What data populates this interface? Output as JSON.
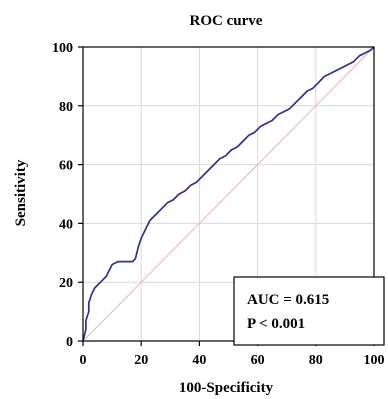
{
  "chart_data": {
    "type": "line",
    "title": "ROC curve",
    "xlabel": "100-Specificity",
    "ylabel": "Sensitivity",
    "xlim": [
      0,
      100
    ],
    "ylim": [
      0,
      100
    ],
    "xticks": [
      0,
      20,
      40,
      60,
      80,
      100
    ],
    "yticks": [
      0,
      20,
      40,
      60,
      80,
      100
    ],
    "grid": true,
    "colors": {
      "curve": "#2e3192",
      "diagonal": "#e8b4b8",
      "grid": "#d9d9d9",
      "frame": "#000000"
    },
    "series": [
      {
        "role": "roc-curve",
        "x": [
          0,
          0.5,
          1,
          1,
          2,
          2,
          3,
          4,
          5,
          6,
          8,
          9,
          10,
          12,
          13,
          15,
          17,
          18,
          19,
          20,
          21,
          22,
          23,
          24,
          25,
          27,
          29,
          31,
          33,
          35,
          37,
          39,
          41,
          43,
          45,
          47,
          49,
          51,
          53,
          55,
          57,
          59,
          61,
          63,
          65,
          67,
          69,
          71,
          73,
          75,
          77,
          79,
          81,
          83,
          85,
          87,
          89,
          91,
          93,
          95,
          97,
          99,
          100
        ],
        "y": [
          0,
          2,
          4,
          7,
          10,
          13,
          16,
          18,
          19,
          20,
          22,
          24,
          26,
          27,
          27,
          27,
          27,
          28,
          32,
          35,
          37,
          39,
          41,
          42,
          43,
          45,
          47,
          48,
          50,
          51,
          53,
          54,
          56,
          58,
          60,
          62,
          63,
          65,
          66,
          68,
          70,
          71,
          73,
          74,
          75,
          77,
          78,
          79,
          81,
          83,
          85,
          86,
          88,
          90,
          91,
          92,
          93,
          94,
          95,
          97,
          98,
          99,
          100
        ]
      },
      {
        "role": "reference-diagonal",
        "x": [
          0,
          100
        ],
        "y": [
          0,
          100
        ]
      }
    ],
    "annotation": {
      "auc_text": "AUC = 0.615",
      "p_text": "P < 0.001"
    }
  }
}
